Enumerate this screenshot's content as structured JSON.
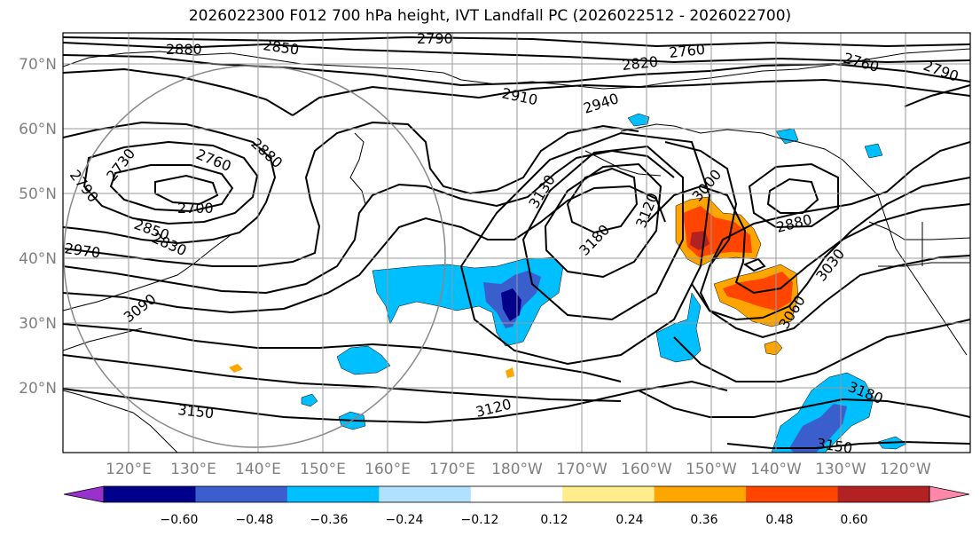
{
  "title": "2026022300 F012 700 hPa height, IVT Landfall PC (2026022512 - 2026022700)",
  "colors": {
    "contour": "#000000",
    "grid": "#9a9a9a",
    "axis_label": "#808080"
  },
  "lat_labels": [
    "70°N",
    "60°N",
    "50°N",
    "40°N",
    "30°N",
    "20°N"
  ],
  "lon_labels": [
    "120°E",
    "130°E",
    "140°E",
    "150°E",
    "160°E",
    "170°E",
    "180°W",
    "170°W",
    "160°W",
    "150°W",
    "140°W",
    "130°W",
    "120°W"
  ],
  "contour_labels": [
    "2880",
    "2850",
    "2790",
    "2760",
    "2820",
    "2760",
    "2790",
    "2910",
    "2940",
    "2730",
    "2760",
    "2880",
    "2790",
    "2700",
    "2850",
    "2830",
    "2970",
    "3090",
    "3130",
    "3180",
    "3120",
    "3000",
    "2880",
    "3030",
    "3060",
    "3180",
    "3150",
    "3120",
    "3150"
  ],
  "colorbar": {
    "ticks": [
      "−0.60",
      "−0.48",
      "−0.36",
      "−0.24",
      "−0.12",
      "0.12",
      "0.24",
      "0.36",
      "0.48",
      "0.60"
    ],
    "colors": [
      "#9932cc",
      "#00008b",
      "#3a5fcd",
      "#00bfff",
      "#b0e2ff",
      "#ffffff",
      "#ffec8b",
      "#ffa500",
      "#ff4500",
      "#b22222",
      "#ff88aa"
    ]
  }
}
